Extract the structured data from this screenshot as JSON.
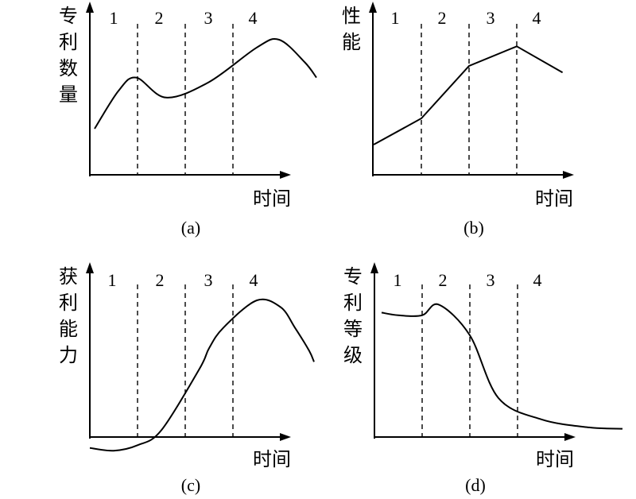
{
  "chart_data": [
    {
      "id": "a",
      "type": "line",
      "caption": "(a)",
      "ylabel": "专利数量",
      "xlabel": "时间",
      "phases": [
        "1",
        "2",
        "3",
        "4"
      ],
      "series": [
        {
          "x": [
            0.1,
            0.6,
            0.97,
            1.6,
            2.5,
            3.5,
            3.97,
            4.5,
            4.75
          ],
          "y": [
            0.2,
            0.54,
            0.66,
            0.48,
            0.62,
            0.93,
            1.0,
            0.8,
            0.66
          ]
        }
      ]
    },
    {
      "id": "b",
      "type": "line",
      "caption": "(b)",
      "ylabel": "性能",
      "xlabel": "时间",
      "phases": [
        "1",
        "2",
        "3",
        "4"
      ],
      "series": [
        {
          "x": [
            0,
            1,
            2,
            3,
            3.96
          ],
          "y": [
            0.2,
            0.4,
            0.8,
            0.95,
            0.75
          ]
        }
      ]
    },
    {
      "id": "c",
      "type": "line",
      "caption": "(c)",
      "ylabel": "获利能力",
      "xlabel": "时间",
      "phases": [
        "1",
        "2",
        "3",
        "4"
      ],
      "series": [
        {
          "x": [
            0,
            0.5,
            1.0,
            1.5,
            2.3,
            2.5,
            2.8,
            3.5,
            4.0,
            4.3,
            4.6,
            4.7
          ],
          "y": [
            -0.08,
            -0.1,
            -0.06,
            0.05,
            0.5,
            0.65,
            0.8,
            1.0,
            0.95,
            0.8,
            0.63,
            0.55
          ]
        }
      ]
    },
    {
      "id": "d",
      "type": "line",
      "caption": "(d)",
      "ylabel": "专利等级",
      "xlabel": "时间",
      "phases": [
        "1",
        "2",
        "3",
        "4"
      ],
      "series": [
        {
          "x": [
            0.15,
            0.5,
            1.0,
            1.35,
            2.0,
            2.6,
            3.5,
            4.5,
            5.2
          ],
          "y": [
            0.92,
            0.9,
            0.9,
            0.98,
            0.75,
            0.28,
            0.12,
            0.06,
            0.05
          ]
        }
      ]
    }
  ]
}
